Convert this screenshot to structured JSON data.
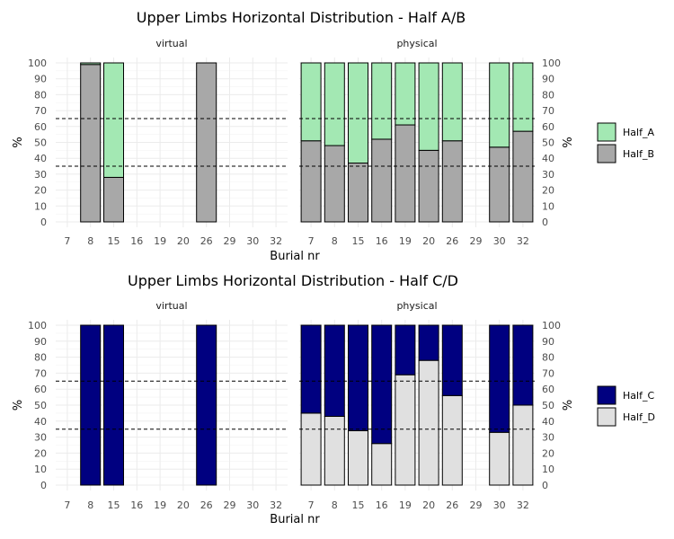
{
  "chart_data": [
    {
      "type": "bar",
      "stacked": true,
      "title": "Upper Limbs Horizontal Distribution - Half A/B",
      "xlabel": "Burial nr",
      "ylabel": "%",
      "ylim": [
        0,
        100
      ],
      "y_ticks": [
        0,
        10,
        20,
        30,
        40,
        50,
        60,
        70,
        80,
        90,
        100
      ],
      "reference_lines": [
        35,
        65
      ],
      "grid": true,
      "legend_position": "right",
      "series_colors": [
        "#a3e8b3",
        "#a8a8a8"
      ],
      "legend": [
        "Half_A",
        "Half_B"
      ],
      "panels": [
        {
          "label": "virtual",
          "categories": [
            "7",
            "8",
            "15",
            "16",
            "19",
            "20",
            "26",
            "29",
            "30",
            "32"
          ],
          "series": [
            {
              "name": "Half_A",
              "values": [
                null,
                1,
                72,
                null,
                null,
                null,
                0,
                null,
                null,
                null
              ]
            },
            {
              "name": "Half_B",
              "values": [
                null,
                99,
                28,
                null,
                null,
                null,
                100,
                null,
                null,
                null
              ]
            }
          ]
        },
        {
          "label": "physical",
          "categories": [
            "7",
            "8",
            "15",
            "16",
            "19",
            "20",
            "26",
            "29",
            "30",
            "32"
          ],
          "series": [
            {
              "name": "Half_A",
              "values": [
                49,
                52,
                63,
                48,
                39,
                55,
                49,
                null,
                53,
                43
              ]
            },
            {
              "name": "Half_B",
              "values": [
                51,
                48,
                37,
                52,
                61,
                45,
                51,
                null,
                47,
                57
              ]
            }
          ]
        }
      ]
    },
    {
      "type": "bar",
      "stacked": true,
      "title": "Upper Limbs Horizontal Distribution - Half C/D",
      "xlabel": "Burial nr",
      "ylabel": "%",
      "ylim": [
        0,
        100
      ],
      "y_ticks": [
        0,
        10,
        20,
        30,
        40,
        50,
        60,
        70,
        80,
        90,
        100
      ],
      "reference_lines": [
        35,
        65
      ],
      "grid": true,
      "legend_position": "right",
      "series_colors": [
        "#000080",
        "#e0e0e0"
      ],
      "legend": [
        "Half_C",
        "Half_D"
      ],
      "panels": [
        {
          "label": "virtual",
          "categories": [
            "7",
            "8",
            "15",
            "16",
            "19",
            "20",
            "26",
            "29",
            "30",
            "32"
          ],
          "series": [
            {
              "name": "Half_C",
              "values": [
                null,
                100,
                100,
                null,
                null,
                null,
                100,
                null,
                null,
                null
              ]
            },
            {
              "name": "Half_D",
              "values": [
                null,
                0,
                0,
                null,
                null,
                null,
                0,
                null,
                null,
                null
              ]
            }
          ]
        },
        {
          "label": "physical",
          "categories": [
            "7",
            "8",
            "15",
            "16",
            "19",
            "20",
            "26",
            "29",
            "30",
            "32"
          ],
          "series": [
            {
              "name": "Half_C",
              "values": [
                55,
                57,
                66,
                74,
                31,
                22,
                44,
                null,
                67,
                50
              ]
            },
            {
              "name": "Half_D",
              "values": [
                45,
                43,
                34,
                26,
                69,
                78,
                56,
                null,
                33,
                50
              ]
            }
          ]
        }
      ]
    }
  ]
}
